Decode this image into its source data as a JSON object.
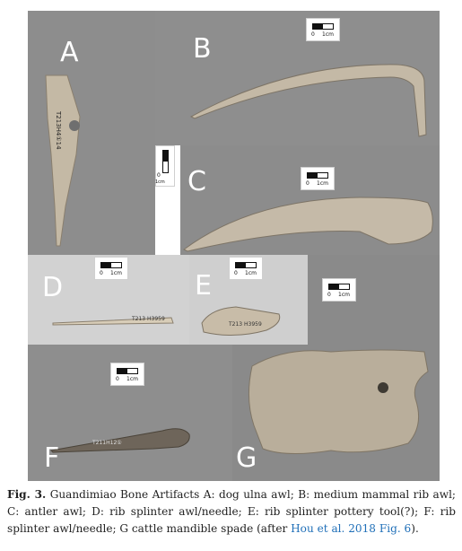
{
  "panels": {
    "A": {
      "label": "A",
      "specimen_text": "T213H4①14"
    },
    "B": {
      "label": "B",
      "scale_0": "0",
      "scale_1": "1cm"
    },
    "C": {
      "label": "C",
      "scale_0": "0",
      "scale_1": "1cm"
    },
    "A_scale": {
      "scale_0": "0",
      "scale_1": "1cm"
    },
    "D": {
      "label": "D",
      "scale_0": "0",
      "scale_1": "1cm",
      "specimen_text": "T213 H3959"
    },
    "E": {
      "label": "E",
      "scale_0": "0",
      "scale_1": "1cm",
      "specimen_text": "T213 H3959"
    },
    "F": {
      "label": "F",
      "scale_0": "0",
      "scale_1": "1cm",
      "specimen_text": "T211H12①"
    },
    "G": {
      "label": "G",
      "scale_0": "0",
      "scale_1": "1cm"
    }
  },
  "caption": {
    "fig_label": "Fig. 3.",
    "text": " Guandimiao Bone Artifacts A: dog ulna awl; B: medium mammal rib awl; C: antler awl; D: rib splinter awl/needle; E: rib splinter pottery tool(?); F: rib splinter awl/needle; G cattle mandible spade (after ",
    "link_text": "Hou et al. 2018 Fig. 6",
    "text_end": ")."
  },
  "colors": {
    "background_gray": "#8c8c8c",
    "background_light": "#cfcfcf",
    "bone": "#c9bfae",
    "link": "#1f6fb8"
  }
}
